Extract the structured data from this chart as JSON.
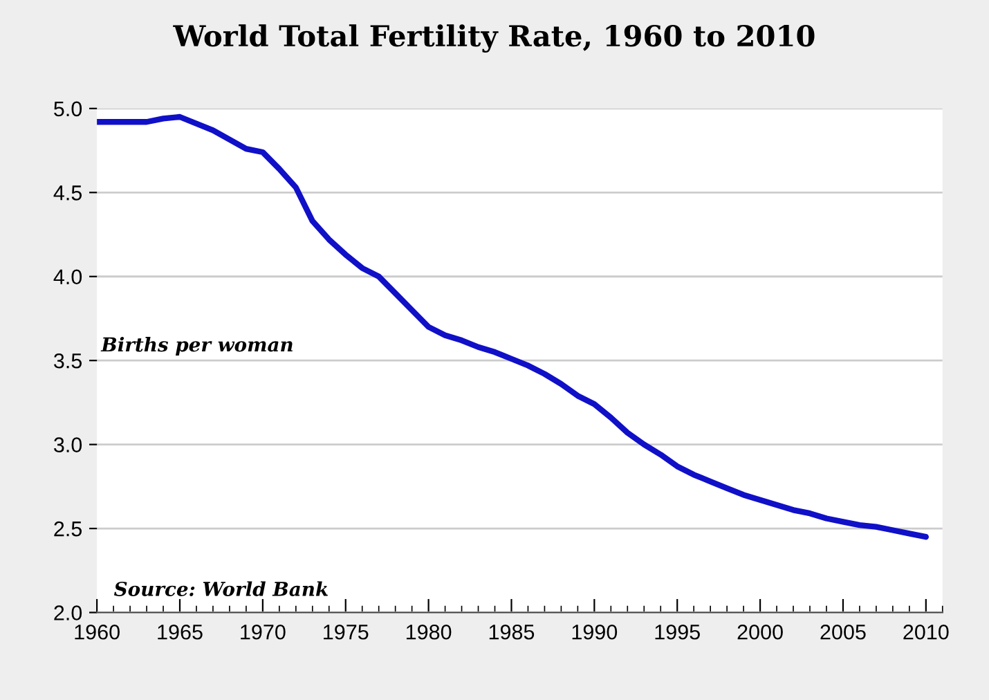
{
  "chart_data": {
    "type": "line",
    "title": "World Total Fertility Rate, 1960 to 2010",
    "ylabel": "Births per woman",
    "annotations": [
      "Source: World Bank"
    ],
    "x": [
      1960,
      1963,
      1964,
      1965,
      1967,
      1969,
      1970,
      1971,
      1972,
      1973,
      1974,
      1975,
      1976,
      1977,
      1978,
      1979,
      1980,
      1981,
      1982,
      1983,
      1984,
      1985,
      1986,
      1987,
      1988,
      1989,
      1990,
      1991,
      1992,
      1993,
      1994,
      1995,
      1996,
      1997,
      1998,
      1999,
      2000,
      2001,
      2002,
      2003,
      2004,
      2005,
      2006,
      2007,
      2008,
      2009,
      2010
    ],
    "series": [
      {
        "color": "#1010c8",
        "values": [
          4.92,
          4.92,
          4.94,
          4.95,
          4.87,
          4.76,
          4.74,
          4.64,
          4.53,
          4.33,
          4.22,
          4.13,
          4.05,
          4.0,
          3.9,
          3.8,
          3.7,
          3.65,
          3.62,
          3.58,
          3.55,
          3.51,
          3.47,
          3.42,
          3.36,
          3.29,
          3.24,
          3.16,
          3.07,
          3.0,
          2.94,
          2.87,
          2.82,
          2.78,
          2.74,
          2.7,
          2.67,
          2.64,
          2.61,
          2.59,
          2.56,
          2.54,
          2.52,
          2.51,
          2.49,
          2.47,
          2.45
        ]
      }
    ],
    "xlim": [
      1960,
      2011
    ],
    "xticks": [
      1960,
      1965,
      1970,
      1975,
      1980,
      1985,
      1990,
      1995,
      2000,
      2005,
      2010
    ],
    "ylim": [
      2.0,
      5.0
    ],
    "yticks": [
      {
        "value": 2.0,
        "label": "2.0"
      },
      {
        "value": 2.5,
        "label": "2.5"
      },
      {
        "value": 3.0,
        "label": "3.0"
      },
      {
        "value": 3.5,
        "label": "3.5"
      },
      {
        "value": 4.0,
        "label": "4.0"
      },
      {
        "value": 4.5,
        "label": "4.5"
      },
      {
        "value": 5.0,
        "label": "5.0"
      }
    ],
    "grid": "y",
    "legend": false,
    "marker": "none",
    "line_style": "solid"
  }
}
